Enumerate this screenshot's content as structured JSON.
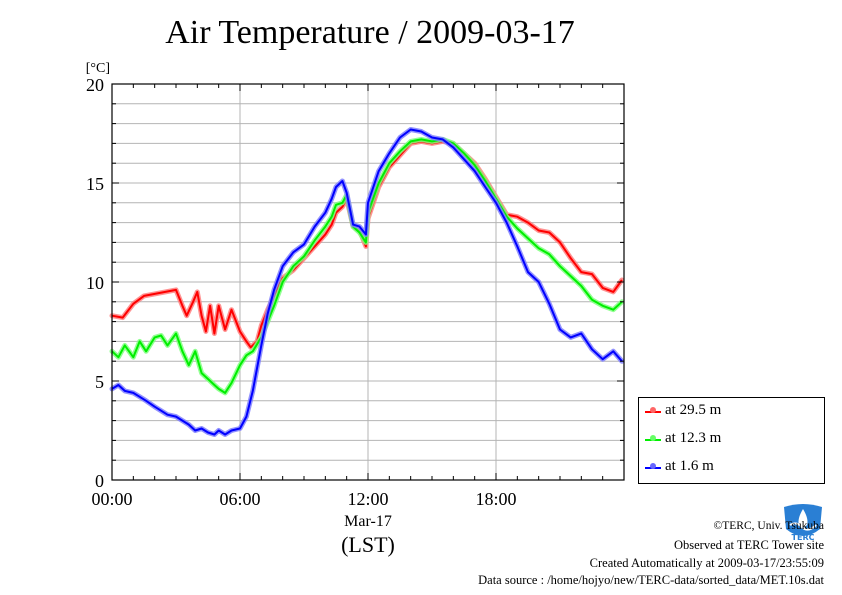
{
  "chart_data": {
    "type": "line",
    "title": "Air Temperature / 2009-03-17",
    "ylabel": "[°C]",
    "xlabel": "(LST)",
    "date_label": "Mar-17",
    "xlim": [
      0,
      24
    ],
    "ylim": [
      0,
      20
    ],
    "x_ticks": [
      {
        "x": 0,
        "label": "00:00"
      },
      {
        "x": 6,
        "label": "06:00"
      },
      {
        "x": 12,
        "label": "12:00"
      },
      {
        "x": 18,
        "label": "18:00"
      }
    ],
    "y_ticks": [
      {
        "y": 0,
        "label": "0"
      },
      {
        "y": 5,
        "label": "5"
      },
      {
        "y": 10,
        "label": "10"
      },
      {
        "y": 15,
        "label": "15"
      },
      {
        "y": 20,
        "label": "20"
      }
    ],
    "grid": true,
    "legend_position": "right, below the plot",
    "series": [
      {
        "name": "at 29.5 m",
        "color": "#ff0000",
        "x": [
          0,
          0.5,
          1,
          1.5,
          2,
          2.5,
          3,
          3.3,
          3.5,
          3.8,
          4,
          4.2,
          4.4,
          4.6,
          4.8,
          5,
          5.3,
          5.6,
          6,
          6.3,
          6.5,
          6.8,
          7,
          7.3,
          7.6,
          8,
          8.5,
          9,
          9.5,
          10,
          10.3,
          10.5,
          10.8,
          11,
          11.3,
          11.6,
          11.9,
          12,
          12.5,
          13,
          13.5,
          14,
          14.5,
          15,
          15.5,
          16,
          16.5,
          17,
          17.5,
          18,
          18.5,
          19,
          19.5,
          20,
          20.5,
          21,
          21.5,
          22,
          22.5,
          23,
          23.5,
          23.9
        ],
        "values": [
          8.3,
          8.2,
          8.9,
          9.3,
          9.4,
          9.5,
          9.6,
          8.8,
          8.3,
          9.0,
          9.5,
          8.3,
          7.5,
          8.8,
          7.4,
          8.8,
          7.6,
          8.6,
          7.5,
          7.0,
          6.7,
          7.0,
          7.8,
          8.6,
          9.3,
          10.2,
          10.6,
          11.2,
          11.8,
          12.4,
          12.9,
          13.5,
          13.8,
          14.2,
          12.8,
          12.6,
          11.8,
          13.2,
          14.8,
          15.8,
          16.4,
          17.0,
          17.1,
          17.0,
          17.1,
          17.0,
          16.5,
          16.0,
          15.2,
          14.3,
          13.4,
          13.3,
          13.0,
          12.6,
          12.5,
          12.0,
          11.2,
          10.5,
          10.4,
          9.7,
          9.5,
          10.1
        ]
      },
      {
        "name": "at 12.3 m",
        "color": "#00ee00",
        "x": [
          0,
          0.3,
          0.6,
          1,
          1.3,
          1.6,
          2,
          2.3,
          2.6,
          3,
          3.3,
          3.6,
          3.9,
          4.2,
          4.5,
          4.8,
          5,
          5.3,
          5.6,
          6,
          6.3,
          6.6,
          7,
          7.3,
          7.6,
          8,
          8.5,
          9,
          9.5,
          10,
          10.3,
          10.5,
          10.8,
          11,
          11.3,
          11.6,
          11.9,
          12,
          12.5,
          13,
          13.5,
          14,
          14.5,
          15,
          15.5,
          16,
          16.5,
          17,
          17.5,
          18,
          18.5,
          19,
          19.5,
          20,
          20.5,
          21,
          21.5,
          22,
          22.5,
          23,
          23.5,
          23.9
        ],
        "values": [
          6.5,
          6.2,
          6.8,
          6.2,
          7.0,
          6.5,
          7.2,
          7.3,
          6.8,
          7.4,
          6.5,
          5.8,
          6.5,
          5.4,
          5.1,
          4.8,
          4.6,
          4.4,
          4.9,
          5.8,
          6.3,
          6.5,
          7.2,
          8.0,
          8.8,
          10.0,
          10.8,
          11.3,
          12.1,
          12.8,
          13.3,
          13.9,
          14.0,
          14.4,
          12.8,
          12.5,
          12.0,
          13.5,
          15.0,
          16.0,
          16.6,
          17.1,
          17.2,
          17.1,
          17.2,
          17.0,
          16.5,
          15.9,
          15.1,
          14.2,
          13.3,
          12.7,
          12.2,
          11.7,
          11.4,
          10.8,
          10.3,
          9.8,
          9.1,
          8.8,
          8.6,
          9.0
        ]
      },
      {
        "name": "at 1.6 m",
        "color": "#0000ff",
        "x": [
          0,
          0.3,
          0.6,
          1,
          1.3,
          1.6,
          2,
          2.3,
          2.6,
          3,
          3.3,
          3.6,
          3.9,
          4.2,
          4.5,
          4.8,
          5,
          5.3,
          5.6,
          6,
          6.3,
          6.6,
          7,
          7.3,
          7.6,
          8,
          8.5,
          9,
          9.5,
          10,
          10.3,
          10.5,
          10.8,
          11,
          11.3,
          11.6,
          11.9,
          12,
          12.5,
          13,
          13.5,
          14,
          14.5,
          15,
          15.5,
          16,
          16.5,
          17,
          17.5,
          18,
          18.5,
          19,
          19.5,
          20,
          20.5,
          21,
          21.5,
          22,
          22.5,
          23,
          23.5,
          23.9
        ],
        "values": [
          4.6,
          4.8,
          4.5,
          4.4,
          4.2,
          4.0,
          3.7,
          3.5,
          3.3,
          3.2,
          3.0,
          2.8,
          2.5,
          2.6,
          2.4,
          2.3,
          2.5,
          2.3,
          2.5,
          2.6,
          3.2,
          4.5,
          6.8,
          8.4,
          9.6,
          10.8,
          11.5,
          11.9,
          12.8,
          13.5,
          14.2,
          14.8,
          15.1,
          14.5,
          12.9,
          12.8,
          12.4,
          14.0,
          15.6,
          16.5,
          17.3,
          17.7,
          17.6,
          17.3,
          17.2,
          16.8,
          16.2,
          15.6,
          14.8,
          14.0,
          13.0,
          11.8,
          10.5,
          10.0,
          8.9,
          7.6,
          7.2,
          7.4,
          6.6,
          6.1,
          6.5,
          6.0
        ]
      }
    ]
  },
  "footer": {
    "copyright": "©TERC, Univ. Tsukuba",
    "site": "Observed at TERC Tower site",
    "created": "Created Automatically at 2009-03-17/23:55:09",
    "source": "Data source : /home/hojyo/new/TERC-data/sorted_data/MET.10s.dat"
  },
  "logo": {
    "text": "TERC",
    "color": "#2a7fd4"
  }
}
